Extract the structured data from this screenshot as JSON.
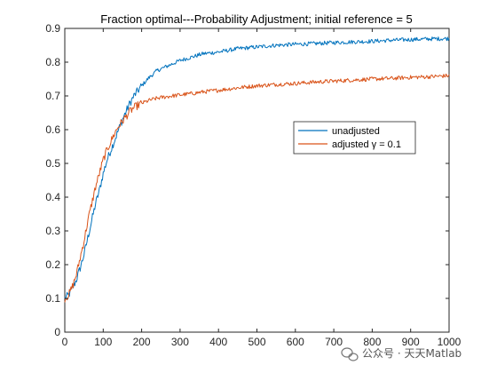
{
  "chart_data": {
    "type": "line",
    "title": "Fraction optimal---Probability Adjustment; initial reference = 5",
    "xlabel": "",
    "ylabel": "",
    "xlim": [
      0,
      1000
    ],
    "ylim": [
      0,
      0.9
    ],
    "xticks": [
      0,
      100,
      200,
      300,
      400,
      500,
      600,
      700,
      800,
      900,
      1000
    ],
    "yticks": [
      0,
      0.1,
      0.2,
      0.3,
      0.4,
      0.5,
      0.6,
      0.7,
      0.8,
      0.9
    ],
    "grid": false,
    "legend_position": "right",
    "series": [
      {
        "name": "unadjusted",
        "color": "#0072BD",
        "x": [
          0,
          10,
          20,
          30,
          40,
          50,
          60,
          70,
          80,
          90,
          100,
          110,
          120,
          130,
          140,
          150,
          160,
          170,
          180,
          190,
          200,
          220,
          240,
          260,
          280,
          300,
          330,
          360,
          400,
          450,
          500,
          550,
          600,
          650,
          700,
          750,
          800,
          850,
          900,
          950,
          1000
        ],
        "y": [
          0.1,
          0.11,
          0.13,
          0.155,
          0.19,
          0.23,
          0.28,
          0.33,
          0.38,
          0.42,
          0.47,
          0.51,
          0.54,
          0.57,
          0.6,
          0.63,
          0.655,
          0.68,
          0.7,
          0.715,
          0.73,
          0.755,
          0.775,
          0.785,
          0.795,
          0.805,
          0.815,
          0.825,
          0.83,
          0.84,
          0.845,
          0.85,
          0.853,
          0.855,
          0.858,
          0.86,
          0.862,
          0.865,
          0.867,
          0.869,
          0.87
        ]
      },
      {
        "name": "adjusted γ = 0.1",
        "color": "#D95319",
        "x": [
          0,
          10,
          20,
          30,
          40,
          50,
          60,
          70,
          80,
          90,
          100,
          110,
          120,
          130,
          140,
          150,
          160,
          170,
          180,
          190,
          200,
          220,
          240,
          260,
          280,
          300,
          330,
          360,
          400,
          450,
          500,
          550,
          600,
          650,
          700,
          750,
          800,
          850,
          900,
          950,
          1000
        ],
        "y": [
          0.1,
          0.11,
          0.135,
          0.17,
          0.22,
          0.27,
          0.33,
          0.38,
          0.43,
          0.47,
          0.51,
          0.54,
          0.565,
          0.59,
          0.61,
          0.625,
          0.64,
          0.655,
          0.665,
          0.672,
          0.678,
          0.687,
          0.693,
          0.697,
          0.7,
          0.703,
          0.707,
          0.712,
          0.717,
          0.724,
          0.73,
          0.734,
          0.737,
          0.741,
          0.744,
          0.747,
          0.75,
          0.752,
          0.755,
          0.757,
          0.76
        ]
      }
    ]
  },
  "watermark": {
    "text": "公众号 · 天天Matlab",
    "icon": "wechat-icon"
  }
}
